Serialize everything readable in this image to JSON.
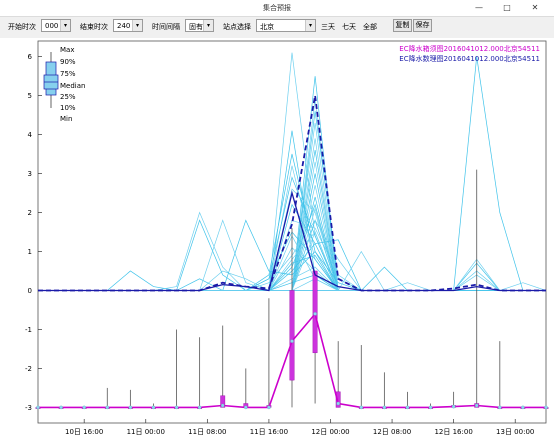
{
  "window": {
    "title": "集合预报",
    "minimize": "—",
    "maximize": "□",
    "close": "✕"
  },
  "toolbar": {
    "start_label": "开始时次",
    "start_value": "000",
    "end_label": "结束时次",
    "end_value": "240",
    "interval_label": "时间间隔",
    "interval_value": "固有",
    "station_label": "站点选择",
    "station_value": "北京",
    "three_days": "三天",
    "seven_days": "七天",
    "all": "全部",
    "copy": "复制",
    "save": "保存"
  },
  "chart_data": {
    "type": "line",
    "legend": {
      "items": [
        {
          "name": "EC降水箱须图2016041012.000北京54511",
          "color": "#cc00cc"
        },
        {
          "name": "EC降水数理图2016041012.000北京54511",
          "color": "#1a1aa8"
        }
      ]
    },
    "box_legend": [
      "Max",
      "90%",
      "75%",
      "Median",
      "25%",
      "10%",
      "Min"
    ],
    "y_ticks": [
      -3,
      -2,
      -1,
      0,
      1,
      2,
      3,
      4,
      5,
      6
    ],
    "ylim": [
      -3.4,
      6.4
    ],
    "xlim": [
      0,
      132
    ],
    "x_ticks": [
      {
        "x": 12,
        "label": "10日 16:00"
      },
      {
        "x": 28,
        "label": "11日 00:00"
      },
      {
        "x": 44,
        "label": "11日 08:00"
      },
      {
        "x": 60,
        "label": "11日 16:00"
      },
      {
        "x": 76,
        "label": "12日 00:00"
      },
      {
        "x": 92,
        "label": "12日 08:00"
      },
      {
        "x": 108,
        "label": "12日 16:00"
      },
      {
        "x": 124,
        "label": "13日 00:00"
      }
    ],
    "ensemble_x": [
      0,
      6,
      12,
      18,
      24,
      30,
      36,
      42,
      48,
      54,
      60,
      66,
      72,
      78,
      84,
      90,
      96,
      102,
      108,
      114,
      120,
      126,
      132
    ],
    "ensemble": [
      [
        0,
        0,
        0,
        0,
        0,
        0,
        0,
        0,
        0,
        0,
        0,
        6.1,
        1.4,
        0,
        0,
        0,
        0,
        0,
        0,
        0,
        0,
        0,
        0
      ],
      [
        0,
        0,
        0,
        0,
        0,
        0,
        0,
        0,
        0,
        0,
        0,
        0,
        5.5,
        0,
        0,
        0,
        0,
        0,
        0,
        0,
        0,
        0,
        0
      ],
      [
        0,
        0,
        0,
        0,
        0,
        0,
        0,
        0,
        0,
        0,
        0,
        0,
        4.9,
        0,
        0,
        0,
        0,
        0,
        0,
        0,
        0,
        0,
        0
      ],
      [
        0,
        0,
        0,
        0,
        0,
        0,
        0,
        0,
        0,
        0,
        0,
        0,
        4.6,
        0.3,
        0,
        0,
        0,
        0,
        0,
        0,
        0,
        0,
        0
      ],
      [
        0,
        0,
        0,
        0,
        0,
        0,
        0,
        0,
        0,
        0,
        0,
        0,
        4.3,
        0,
        0,
        0,
        0,
        0,
        0,
        0,
        0,
        0,
        0
      ],
      [
        0,
        0,
        0,
        0,
        0,
        0,
        0,
        0,
        0,
        0,
        0,
        4.1,
        0.4,
        0,
        0,
        0,
        0,
        0,
        0,
        0,
        0,
        0,
        0
      ],
      [
        0,
        0,
        0,
        0,
        0,
        0,
        0,
        0,
        0,
        0,
        0,
        0,
        3.9,
        0,
        0,
        0,
        0,
        0,
        0,
        0,
        0,
        0,
        0
      ],
      [
        0,
        0,
        0,
        0,
        0,
        0,
        0,
        0,
        0,
        0,
        0,
        0,
        3.6,
        0,
        0,
        0,
        0,
        0,
        0,
        0,
        0,
        0,
        0
      ],
      [
        0,
        0,
        0,
        0,
        0,
        0,
        0,
        0,
        0,
        0,
        0,
        0,
        3.3,
        0,
        0,
        0,
        0,
        0,
        0,
        0,
        0,
        0,
        0
      ],
      [
        0,
        0,
        0,
        0,
        0,
        0,
        0,
        0,
        0,
        0,
        0,
        0,
        3.0,
        0,
        0,
        0,
        0,
        0,
        0,
        0,
        0,
        0,
        0
      ],
      [
        0,
        0,
        0,
        0,
        0,
        0,
        0,
        0,
        0,
        0,
        0,
        0,
        2.7,
        0,
        0,
        0,
        0,
        0,
        0,
        0,
        0,
        0,
        0
      ],
      [
        0,
        0,
        0,
        0,
        0,
        0,
        0,
        0,
        0,
        0,
        0,
        0,
        2.4,
        0,
        0,
        0,
        0,
        0,
        0,
        0,
        0,
        0,
        0
      ],
      [
        0,
        0,
        0,
        0,
        0,
        0,
        0,
        0,
        0,
        0,
        0,
        0,
        2.1,
        0,
        0,
        0,
        0,
        0,
        0,
        0,
        0,
        0,
        0
      ],
      [
        0,
        0,
        0,
        0,
        0,
        0,
        0,
        0,
        0,
        0,
        0,
        0,
        1.8,
        0,
        0,
        0,
        0,
        0,
        0,
        0,
        0,
        0,
        0
      ],
      [
        0,
        0,
        0,
        0,
        0,
        0,
        0,
        0,
        0,
        0,
        0,
        0,
        1.5,
        0,
        0,
        0,
        0,
        0,
        0,
        0,
        0,
        0,
        0
      ],
      [
        0,
        0,
        0,
        0,
        0,
        0,
        0,
        0,
        0,
        0,
        0.4,
        3.5,
        1.0,
        0,
        0,
        0,
        0,
        0,
        0,
        0,
        0,
        0,
        0
      ],
      [
        0,
        0,
        0,
        0,
        0,
        0,
        0,
        0,
        0.5,
        0.3,
        0,
        3.2,
        0.8,
        0,
        0,
        0,
        0,
        0,
        0,
        0,
        0,
        0,
        0
      ],
      [
        0,
        0,
        0,
        0,
        0,
        0,
        0,
        0,
        0,
        0,
        0.3,
        2.9,
        1.4,
        0,
        0,
        0,
        0,
        0,
        0,
        0,
        0,
        0,
        0
      ],
      [
        0,
        0,
        0,
        0,
        0,
        0,
        0,
        0,
        0,
        0,
        0,
        2.6,
        2.0,
        0,
        0,
        0,
        0,
        0,
        0,
        0,
        0,
        0,
        0
      ],
      [
        0,
        0,
        0,
        0,
        0,
        0,
        0,
        0.3,
        0,
        0,
        0,
        2.2,
        1.2,
        0,
        0,
        0,
        0,
        0,
        0,
        0,
        0,
        0,
        0
      ],
      [
        0,
        0,
        0,
        0,
        0,
        0,
        0,
        0,
        0,
        0,
        0,
        1.8,
        1.6,
        0.4,
        0,
        0,
        0,
        0,
        0,
        0,
        0,
        0,
        0
      ],
      [
        0,
        0,
        0,
        0,
        0.5,
        0.1,
        0,
        0,
        0,
        0,
        0.3,
        1.5,
        0.8,
        0,
        0,
        0,
        0,
        0,
        0,
        0,
        0,
        0,
        0
      ],
      [
        0,
        0,
        0,
        0,
        0,
        0,
        0,
        0,
        0,
        0,
        0,
        1.1,
        0.5,
        0,
        0,
        0,
        0,
        0,
        0,
        0,
        0,
        0,
        0
      ],
      [
        0,
        0,
        0,
        0,
        0,
        0,
        0,
        0,
        0,
        0,
        0,
        0.7,
        0.9,
        0,
        0,
        0,
        0,
        0,
        0,
        0,
        0,
        0,
        0
      ],
      [
        0,
        0,
        0,
        0,
        0,
        0,
        0.1,
        2.0,
        0.6,
        0,
        0,
        1.4,
        0.3,
        0,
        0,
        0,
        0,
        0,
        0,
        0,
        0,
        0,
        0
      ],
      [
        0,
        0,
        0,
        0,
        0,
        0,
        0,
        1.8,
        0.4,
        0,
        0,
        0.6,
        2.2,
        0,
        0,
        0,
        0,
        0,
        0,
        0,
        0,
        0,
        0
      ],
      [
        0,
        0,
        0,
        0,
        0,
        0,
        0,
        0,
        1.8,
        0.2,
        0,
        0.8,
        1.5,
        0,
        0,
        0,
        0,
        0,
        0,
        0,
        0,
        0,
        0
      ],
      [
        0,
        0,
        0,
        0,
        0,
        0,
        0,
        0,
        0,
        1.8,
        0.5,
        0.4,
        1.0,
        0.2,
        0,
        0,
        0,
        0,
        0,
        0,
        0,
        0,
        0
      ],
      [
        0,
        0,
        0,
        0,
        0,
        0,
        0,
        0,
        0,
        0,
        0.2,
        0.9,
        1.8,
        0.8,
        0,
        0,
        0,
        0,
        0,
        0,
        0,
        0,
        0
      ],
      [
        0,
        0,
        0,
        0,
        0,
        0,
        0,
        0,
        0,
        0,
        0,
        0.5,
        1.2,
        1.3,
        0,
        0,
        0,
        0,
        0,
        0,
        0,
        0,
        0
      ],
      [
        0,
        0,
        0,
        0,
        0,
        0,
        0,
        0,
        0,
        0,
        0,
        0.3,
        0.6,
        0,
        1.0,
        0,
        0,
        0,
        0,
        0,
        0,
        0,
        0
      ],
      [
        0,
        0,
        0,
        0,
        0,
        0,
        0,
        0,
        0,
        0,
        0,
        0.2,
        0.4,
        0,
        0,
        0.6,
        0,
        0,
        0,
        0,
        0,
        0,
        0
      ],
      [
        0,
        0,
        0,
        0,
        0,
        0,
        0,
        0,
        0,
        0,
        0,
        0,
        0.3,
        0,
        0,
        0,
        0.2,
        0,
        0,
        0.4,
        0,
        0,
        0
      ],
      [
        0,
        0,
        0,
        0,
        0,
        0,
        0,
        0,
        0,
        0,
        0,
        0,
        0,
        0,
        0,
        0,
        0,
        0,
        0,
        0.7,
        0,
        0,
        0
      ],
      [
        0,
        0,
        0,
        0,
        0,
        0,
        0,
        0,
        0,
        0,
        0,
        0,
        0,
        0,
        0,
        0,
        0,
        0,
        0,
        0.5,
        0,
        0.2,
        0
      ],
      [
        0,
        0,
        0,
        0,
        0,
        0,
        0,
        0,
        0,
        0,
        0,
        0,
        0,
        0,
        0,
        0,
        0,
        0,
        0,
        6.0,
        2.0,
        0,
        0
      ],
      [
        0,
        0,
        0,
        0,
        0,
        0,
        0,
        0,
        0,
        0,
        0,
        0,
        0,
        0,
        0,
        0,
        0,
        0,
        0,
        0.8,
        0,
        0,
        0
      ]
    ],
    "deterministic": {
      "x": [
        0,
        6,
        12,
        18,
        24,
        30,
        36,
        42,
        48,
        54,
        60,
        66,
        72,
        78,
        84,
        90,
        96,
        102,
        108,
        114,
        120,
        126,
        132
      ],
      "y": [
        0,
        0,
        0,
        0,
        0,
        0,
        0,
        0,
        0.15,
        0.1,
        0,
        2.5,
        0.4,
        0.1,
        0,
        0,
        0,
        0,
        0,
        0.1,
        0,
        0,
        0
      ]
    },
    "mean": {
      "x": [
        0,
        6,
        12,
        18,
        24,
        30,
        36,
        42,
        48,
        54,
        60,
        66,
        72,
        78,
        84,
        90,
        96,
        102,
        108,
        114,
        120,
        126,
        132
      ],
      "y": [
        0,
        0,
        0,
        0,
        0,
        0,
        0,
        0,
        0.2,
        0.1,
        0.05,
        1.7,
        5.0,
        0.3,
        0,
        0,
        0,
        0,
        0.05,
        0.15,
        0,
        0,
        0
      ]
    },
    "box_x": [
      0,
      6,
      12,
      18,
      24,
      30,
      36,
      42,
      48,
      54,
      60,
      66,
      72,
      78,
      84,
      90,
      96,
      102,
      108,
      114,
      120,
      126,
      132
    ],
    "box_median": [
      -3,
      -3,
      -3,
      -3,
      -3,
      -3,
      -3,
      -3,
      -2.95,
      -3,
      -3,
      -1.3,
      -0.6,
      -2.9,
      -3,
      -3,
      -3,
      -3,
      -2.98,
      -2.95,
      -3,
      -3,
      -3
    ],
    "box_q1": [
      -3,
      -3,
      -3,
      -3,
      -3,
      -3,
      -3,
      -3,
      -3,
      -3,
      -3,
      -2.3,
      -1.6,
      -3,
      -3,
      -3,
      -3,
      -3,
      -3,
      -3,
      -3,
      -3,
      -3
    ],
    "box_q3": [
      -3,
      -3,
      -3,
      -3,
      -3,
      -3,
      -3,
      -3,
      -2.7,
      -2.9,
      -2.95,
      0.0,
      0.5,
      -2.6,
      -3,
      -3,
      -3,
      -3,
      -2.95,
      -2.9,
      -3,
      -3,
      -3
    ],
    "box_min": [
      -3,
      -3,
      -3,
      -3,
      -3,
      -3,
      -3,
      -3,
      -3,
      -3,
      -3,
      -3,
      -2.9,
      -3,
      -3,
      -3,
      -3,
      -3,
      -3,
      -3,
      -3,
      -3,
      -3
    ],
    "box_max": [
      -3,
      -3,
      -3,
      -2.5,
      -2.55,
      -2.9,
      -1.0,
      -1.2,
      -0.9,
      -2.0,
      -0.2,
      1.6,
      0,
      -1.3,
      -1.4,
      -2.1,
      -2.6,
      -2.9,
      -2.6,
      3.1,
      -1.3,
      -3,
      -3
    ]
  }
}
